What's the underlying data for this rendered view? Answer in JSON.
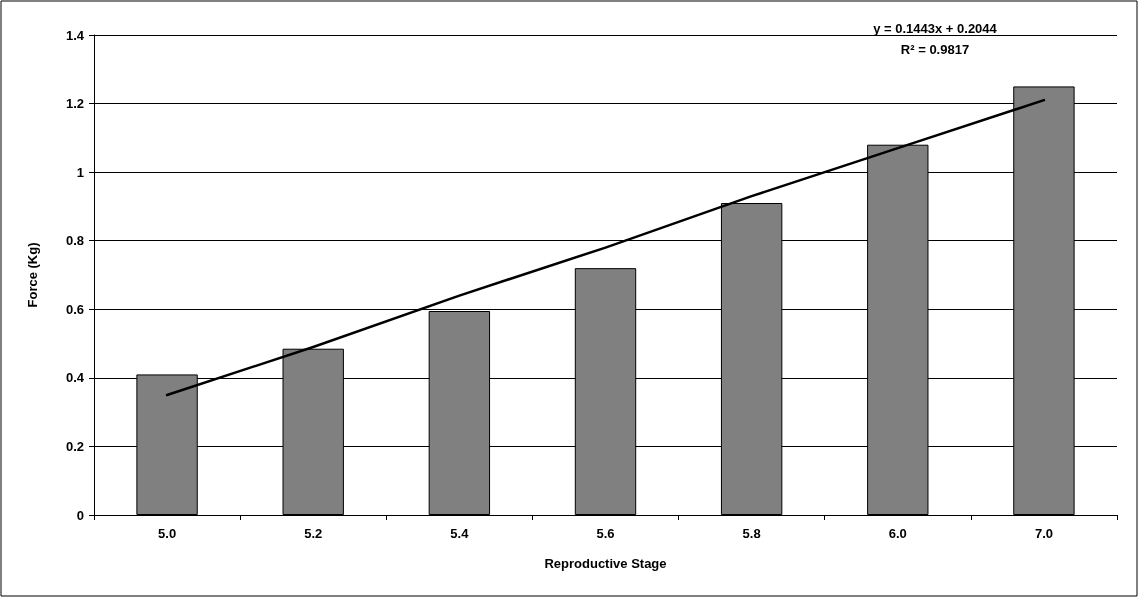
{
  "chart_data": {
    "type": "bar",
    "xlabel": "Reproductive Stage",
    "ylabel": "Force (Kg)",
    "categories": [
      "5.0",
      "5.2",
      "5.4",
      "5.6",
      "5.8",
      "6.0",
      "7.0"
    ],
    "series": [
      {
        "color": "#808080",
        "values": [
          0.41,
          0.485,
          0.595,
          0.72,
          0.91,
          1.08,
          1.25
        ]
      },
      {
        "type": "line",
        "color": "#000000",
        "x": [
          "5.0",
          "5.2",
          "5.4",
          "5.6",
          "5.8",
          "6.0",
          "7.0"
        ],
        "values": [
          0.35,
          0.49,
          0.64,
          0.78,
          0.93,
          1.07,
          1.21
        ]
      }
    ],
    "annotations": [
      "y = 0.1443x + 0.2044",
      "R² = 0.9817"
    ],
    "ylim": [
      0,
      1.4
    ],
    "yticks": [
      0,
      0.2,
      0.4,
      0.6,
      0.8,
      1,
      1.2,
      1.4
    ],
    "grid": "y",
    "marker": "none",
    "line_style": "solid"
  }
}
